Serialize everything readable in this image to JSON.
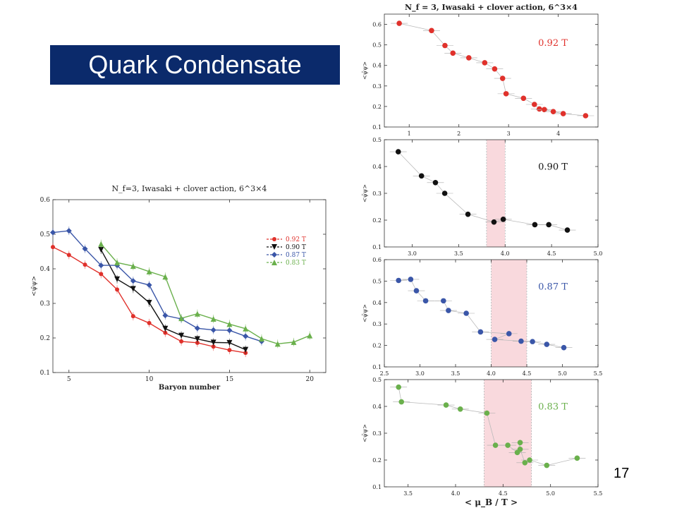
{
  "slide": {
    "title": "Quark Condensate",
    "number": "17"
  },
  "colors": {
    "c092": "#e0312b",
    "c090": "#111111",
    "c087": "#3a56a8",
    "c083": "#6ab04c",
    "band": "#f7c9cf",
    "title_bg": "#0b2a6b"
  },
  "chart_data": [
    {
      "id": "main",
      "type": "line",
      "title": "N_f=3, Iwasaki + clover action, 6^3×4",
      "xlabel": "Baryon number",
      "ylabel": "<ψ̄ψ>",
      "xlim": [
        4,
        21
      ],
      "ylim": [
        0.1,
        0.6
      ],
      "xticks": [
        "5",
        "10",
        "15",
        "20"
      ],
      "yticks": [
        "0.1",
        "0.2",
        "0.3",
        "0.4",
        "0.5",
        "0.6"
      ],
      "legend_position": "center-right",
      "series": [
        {
          "name": "0.92 T_c",
          "color": "#e0312b",
          "marker": "circle",
          "x": [
            4,
            5,
            6,
            7,
            8,
            9,
            10,
            11,
            12,
            13,
            14,
            15,
            16
          ],
          "y": [
            0.463,
            0.44,
            0.412,
            0.385,
            0.34,
            0.263,
            0.243,
            0.215,
            0.19,
            0.186,
            0.175,
            0.165,
            0.157
          ]
        },
        {
          "name": "0.90 T_c",
          "color": "#111111",
          "marker": "tri-down",
          "x": [
            7,
            8,
            9,
            10,
            11,
            12,
            13,
            14,
            15,
            16
          ],
          "y": [
            0.455,
            0.37,
            0.342,
            0.302,
            0.227,
            0.207,
            0.197,
            0.187,
            0.186,
            0.166
          ]
        },
        {
          "name": "0.87 T_c",
          "color": "#3a56a8",
          "marker": "diamond",
          "x": [
            4,
            5,
            6,
            7,
            8,
            9,
            10,
            11,
            12,
            13,
            14,
            15,
            16,
            17
          ],
          "y": [
            0.505,
            0.51,
            0.458,
            0.41,
            0.41,
            0.365,
            0.353,
            0.265,
            0.255,
            0.228,
            0.223,
            0.222,
            0.205,
            0.19
          ]
        },
        {
          "name": "0.83 T_c",
          "color": "#6ab04c",
          "marker": "tri-up",
          "x": [
            7,
            8,
            9,
            10,
            11,
            12,
            13,
            14,
            15,
            16,
            17,
            18,
            19,
            20
          ],
          "y": [
            0.472,
            0.418,
            0.408,
            0.392,
            0.377,
            0.257,
            0.27,
            0.255,
            0.24,
            0.227,
            0.198,
            0.183,
            0.188,
            0.207
          ]
        }
      ]
    },
    {
      "id": "p1",
      "type": "scatter",
      "title": "N_f = 3, Iwasaki + clover action, 6^3×4",
      "annotation": "0.92 T_c",
      "xlim": [
        0.5,
        4.8
      ],
      "ylim": [
        0.1,
        0.65
      ],
      "xticks": [
        "1",
        "2",
        "3",
        "4"
      ],
      "yticks": [
        "0.1",
        "0.2",
        "0.3",
        "0.4",
        "0.5",
        "0.6"
      ],
      "ylabel": "<ψ̄ψ>",
      "color": "#e0312b",
      "x": [
        0.8,
        1.45,
        1.72,
        1.88,
        2.2,
        2.52,
        2.72,
        2.88,
        2.95,
        3.3,
        3.52,
        3.62,
        3.72,
        3.9,
        4.1,
        4.55
      ],
      "y": [
        0.605,
        0.57,
        0.497,
        0.46,
        0.437,
        0.413,
        0.383,
        0.337,
        0.262,
        0.24,
        0.21,
        0.188,
        0.185,
        0.175,
        0.165,
        0.155
      ]
    },
    {
      "id": "p2",
      "type": "scatter",
      "annotation": "0.90 T_c",
      "xlim": [
        2.7,
        5.0
      ],
      "ylim": [
        0.1,
        0.5
      ],
      "xticks": [
        "3.0",
        "3.5",
        "4.0",
        "4.5",
        "5.0"
      ],
      "yticks": [
        "0.1",
        "0.2",
        "0.3",
        "0.4",
        "0.5"
      ],
      "ylabel": "<ψ̄ψ>",
      "band": [
        3.8,
        4.0
      ],
      "color": "#111111",
      "x": [
        2.85,
        3.1,
        3.25,
        3.35,
        3.6,
        3.88,
        3.98,
        4.32,
        4.47,
        4.67
      ],
      "y": [
        0.455,
        0.365,
        0.34,
        0.3,
        0.222,
        0.193,
        0.203,
        0.183,
        0.183,
        0.163
      ]
    },
    {
      "id": "p3",
      "type": "scatter",
      "annotation": "0.87 T_c",
      "xlim": [
        2.5,
        5.5
      ],
      "ylim": [
        0.1,
        0.6
      ],
      "xticks": [
        "2.5",
        "3.0",
        "3.5",
        "4.0",
        "4.5",
        "5.0",
        "5.5"
      ],
      "yticks": [
        "0.1",
        "0.2",
        "0.3",
        "0.4",
        "0.5",
        "0.6"
      ],
      "ylabel": "<ψ̄ψ>",
      "band": [
        4.0,
        4.5
      ],
      "color": "#3a56a8",
      "x": [
        2.7,
        2.87,
        2.95,
        3.08,
        3.33,
        3.4,
        3.65,
        3.85,
        4.25,
        4.05,
        4.42,
        4.58,
        4.78,
        5.02
      ],
      "y": [
        0.503,
        0.508,
        0.455,
        0.408,
        0.408,
        0.363,
        0.35,
        0.263,
        0.255,
        0.228,
        0.22,
        0.218,
        0.205,
        0.19
      ]
    },
    {
      "id": "p4",
      "type": "scatter",
      "annotation": "0.83 T_c",
      "xlabel": "< μ_B / T >",
      "xlim": [
        3.25,
        5.5
      ],
      "ylim": [
        0.1,
        0.5
      ],
      "xticks": [
        "3.5",
        "4.0",
        "4.5",
        "5.0",
        "5.5"
      ],
      "yticks": [
        "0.1",
        "0.2",
        "0.3",
        "0.4",
        "0.5"
      ],
      "ylabel": "<ψ̄ψ>",
      "band": [
        4.3,
        4.8
      ],
      "color": "#6ab04c",
      "x": [
        3.4,
        3.43,
        3.9,
        4.05,
        4.33,
        4.42,
        4.55,
        4.65,
        4.68,
        4.68,
        4.73,
        4.78,
        4.96,
        5.28
      ],
      "y": [
        0.472,
        0.417,
        0.405,
        0.39,
        0.375,
        0.255,
        0.255,
        0.228,
        0.265,
        0.24,
        0.19,
        0.2,
        0.18,
        0.207
      ]
    }
  ]
}
